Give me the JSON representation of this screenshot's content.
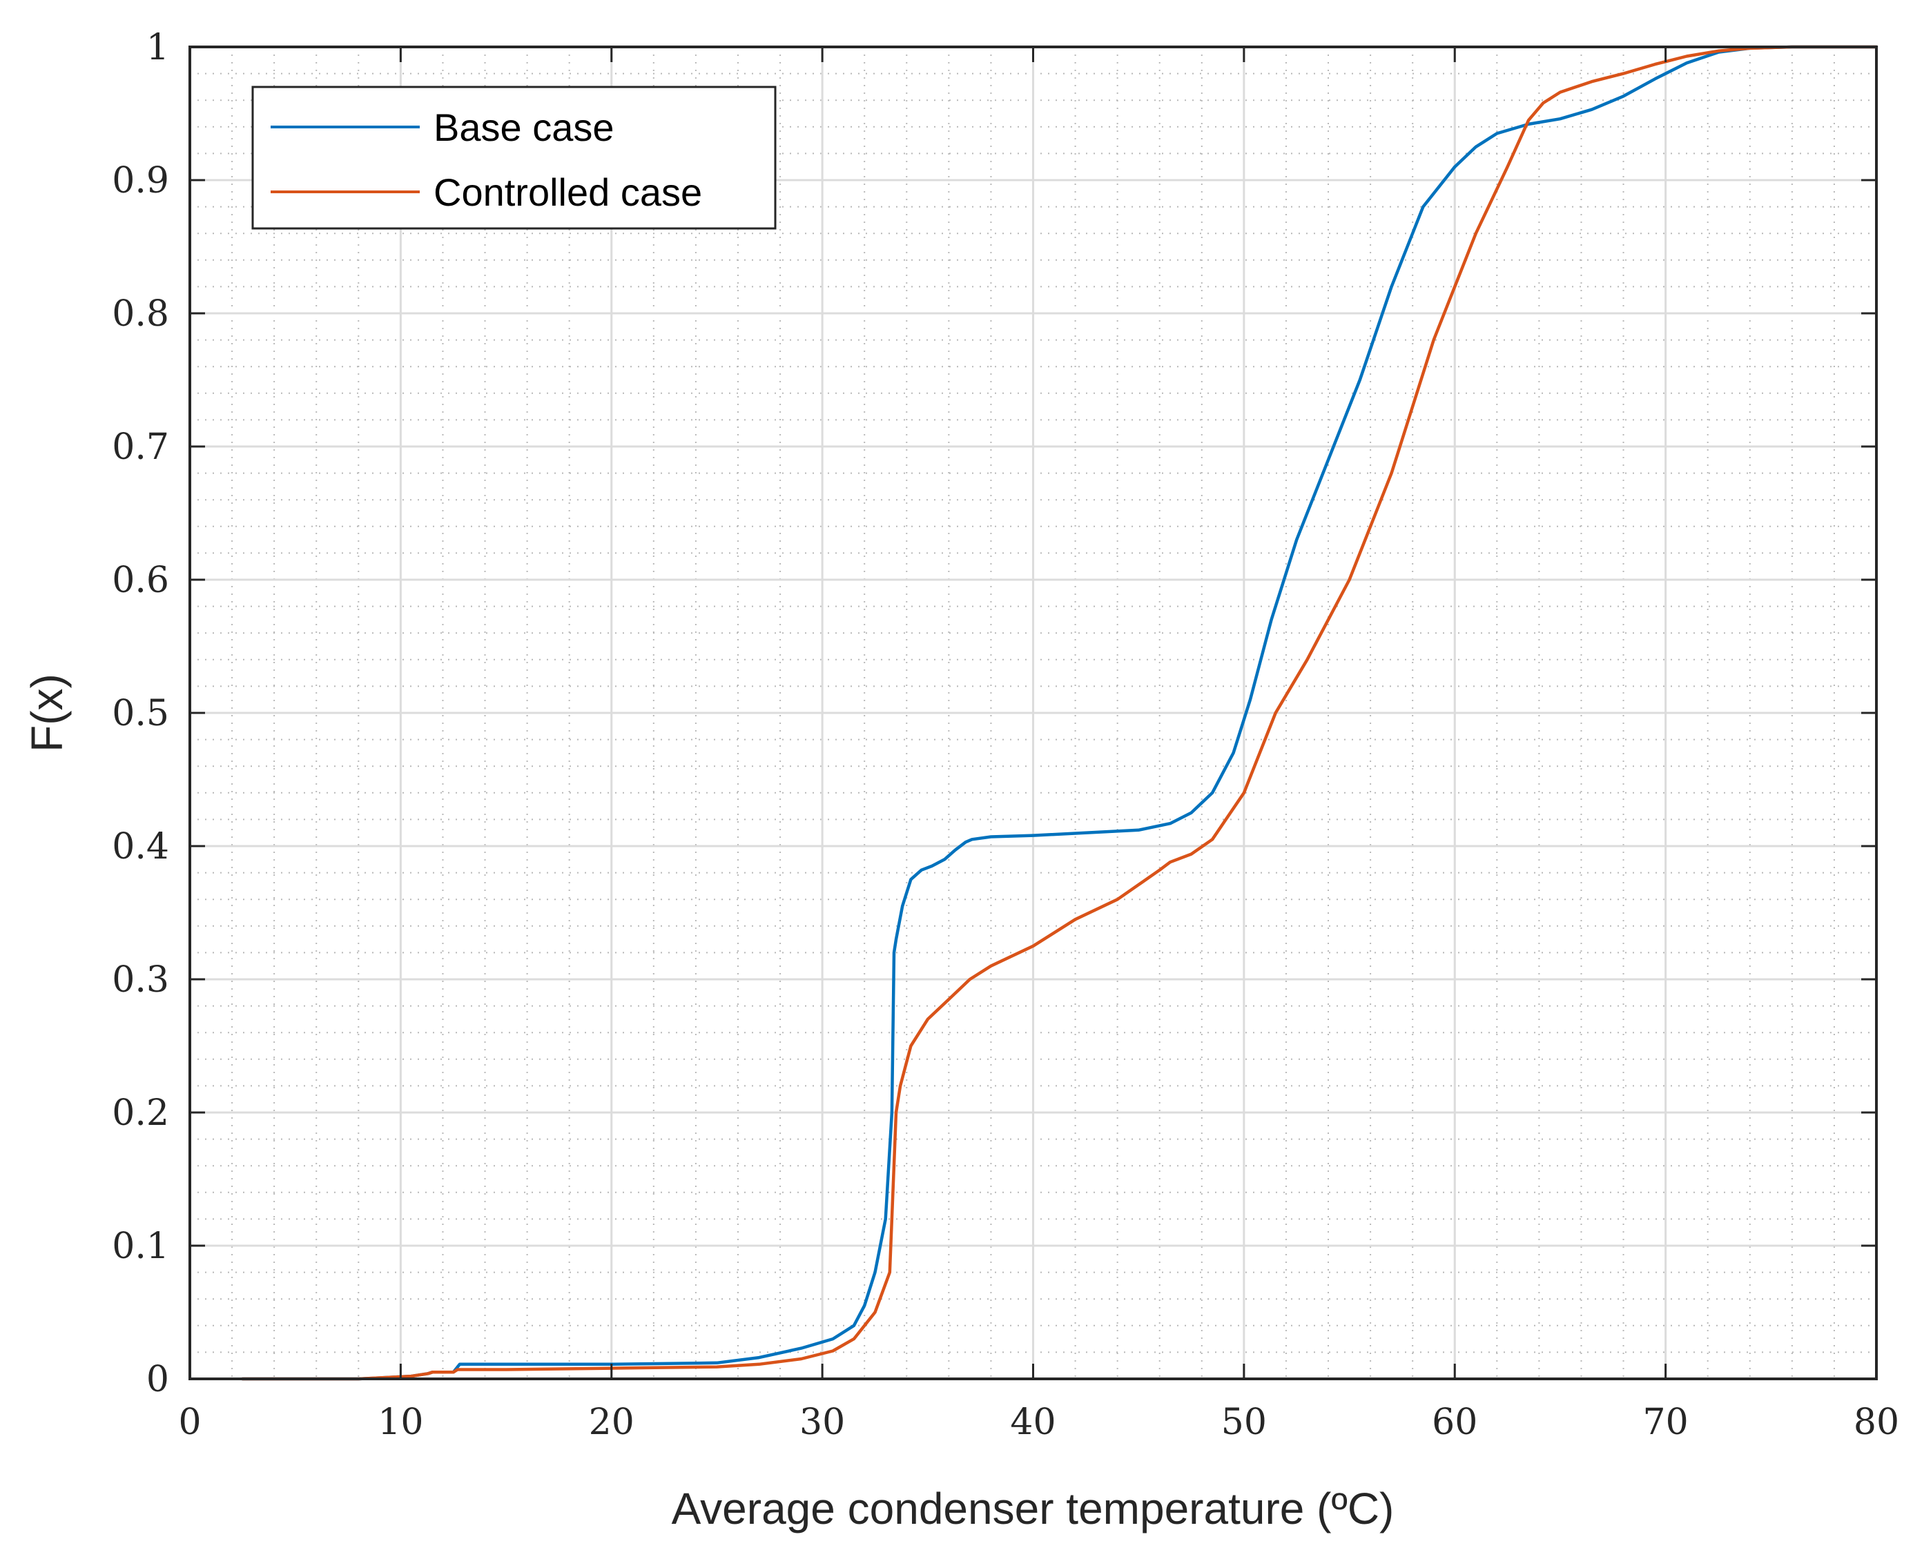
{
  "chart_data": {
    "type": "line",
    "title": "",
    "xlabel": "Average condenser temperature (ºC)",
    "ylabel": "F(x)",
    "xlim": [
      0,
      80
    ],
    "ylim": [
      0,
      1
    ],
    "xticks": [
      0,
      10,
      20,
      30,
      40,
      50,
      60,
      70,
      80
    ],
    "yticks": [
      0,
      0.1,
      0.2,
      0.3,
      0.4,
      0.5,
      0.6,
      0.7,
      0.8,
      0.9,
      1
    ],
    "xtick_labels": [
      "0",
      "10",
      "20",
      "30",
      "40",
      "50",
      "60",
      "70",
      "80"
    ],
    "ytick_labels": [
      "0",
      "0.1",
      "0.2",
      "0.3",
      "0.4",
      "0.5",
      "0.6",
      "0.7",
      "0.8",
      "0.9",
      "1"
    ],
    "grid": true,
    "minor_grid": true,
    "legend_position": "top-left",
    "series": [
      {
        "name": "Base case",
        "color": "#0072BD",
        "x": [
          2.5,
          8,
          10.5,
          11.3,
          11.5,
          12.5,
          12.7,
          12.8,
          15,
          20,
          25,
          27,
          29,
          30.5,
          31.5,
          32,
          32.5,
          33,
          33.3,
          33.4,
          33.5,
          33.8,
          34.2,
          34.7,
          35.2,
          35.8,
          36.3,
          36.8,
          37.1,
          38,
          40,
          45,
          46.5,
          47.5,
          48.5,
          49.5,
          50.3,
          51.3,
          52.5,
          54,
          55.5,
          57,
          58.5,
          60,
          61,
          62,
          63.5,
          65,
          66.5,
          68,
          69.5,
          71,
          72.5,
          74,
          76,
          80
        ],
        "y": [
          0,
          0,
          0.002,
          0.004,
          0.005,
          0.005,
          0.009,
          0.011,
          0.011,
          0.011,
          0.012,
          0.016,
          0.023,
          0.03,
          0.04,
          0.055,
          0.08,
          0.12,
          0.2,
          0.32,
          0.33,
          0.355,
          0.375,
          0.382,
          0.385,
          0.39,
          0.397,
          0.403,
          0.405,
          0.407,
          0.408,
          0.412,
          0.417,
          0.425,
          0.44,
          0.47,
          0.51,
          0.57,
          0.63,
          0.69,
          0.75,
          0.82,
          0.88,
          0.91,
          0.925,
          0.935,
          0.942,
          0.946,
          0.953,
          0.963,
          0.976,
          0.988,
          0.996,
          0.999,
          1.0,
          1.0
        ],
        "legend_label": "Base case"
      },
      {
        "name": "Controlled case",
        "color": "#D95319",
        "x": [
          2.5,
          8,
          10.5,
          11.3,
          11.5,
          12.5,
          12.7,
          15,
          20,
          25,
          27,
          29,
          30.5,
          31.5,
          32.5,
          33.2,
          33.5,
          33.7,
          34.2,
          35,
          36,
          37,
          38,
          40,
          42,
          44,
          46,
          46.5,
          47.5,
          48.5,
          50,
          51.5,
          53,
          55,
          57,
          59,
          61,
          62.5,
          63.5,
          64.2,
          65,
          66.5,
          68,
          69.5,
          71,
          72.5,
          74,
          76,
          80
        ],
        "y": [
          0,
          0,
          0.002,
          0.004,
          0.005,
          0.005,
          0.007,
          0.007,
          0.008,
          0.009,
          0.011,
          0.015,
          0.021,
          0.03,
          0.05,
          0.08,
          0.2,
          0.22,
          0.25,
          0.27,
          0.285,
          0.3,
          0.31,
          0.325,
          0.345,
          0.36,
          0.382,
          0.388,
          0.394,
          0.405,
          0.44,
          0.5,
          0.54,
          0.6,
          0.68,
          0.78,
          0.86,
          0.91,
          0.945,
          0.958,
          0.966,
          0.974,
          0.98,
          0.987,
          0.993,
          0.997,
          0.999,
          1.0,
          1.0
        ],
        "legend_label": "Controlled case"
      }
    ]
  }
}
